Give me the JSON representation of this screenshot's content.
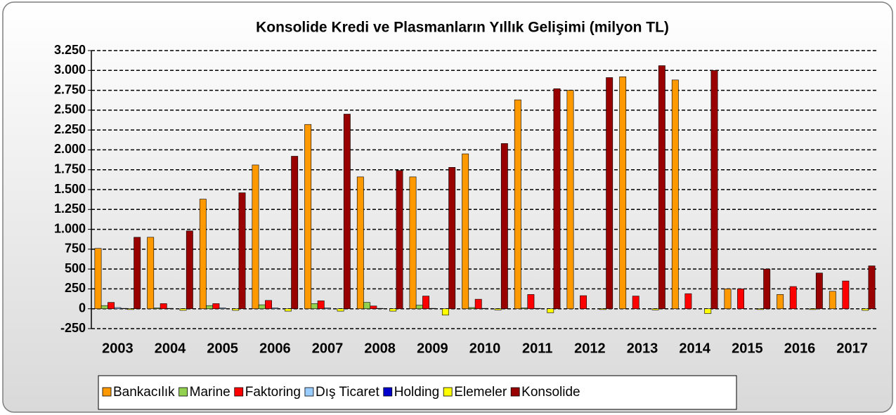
{
  "chart_data": {
    "type": "bar",
    "title": "Konsolide Kredi ve Plasmanların Yıllık Gelişimi (milyon TL)",
    "categories": [
      "2003",
      "2004",
      "2005",
      "2006",
      "2007",
      "2008",
      "2009",
      "2010",
      "2011",
      "2012",
      "2013",
      "2014",
      "2015",
      "2016",
      "2017"
    ],
    "series": [
      {
        "name": "Bankacılık",
        "color": "#ff9900",
        "values": [
          760,
          900,
          1380,
          1810,
          2320,
          1660,
          1660,
          1950,
          2630,
          2750,
          2920,
          2880,
          250,
          180,
          220
        ]
      },
      {
        "name": "Marine",
        "color": "#92d050",
        "values": [
          40,
          10,
          40,
          50,
          65,
          80,
          45,
          15,
          10,
          0,
          0,
          0,
          0,
          0,
          0
        ]
      },
      {
        "name": "Faktoring",
        "color": "#ff0000",
        "values": [
          80,
          65,
          65,
          105,
          100,
          35,
          160,
          120,
          180,
          165,
          160,
          190,
          250,
          280,
          350
        ]
      },
      {
        "name": "Dış Ticaret",
        "color": "#99ccff",
        "values": [
          15,
          5,
          10,
          10,
          10,
          5,
          5,
          5,
          5,
          0,
          0,
          0,
          0,
          0,
          0
        ]
      },
      {
        "name": "Holding",
        "color": "#0000cc",
        "values": [
          5,
          0,
          0,
          0,
          0,
          0,
          0,
          0,
          0,
          0,
          0,
          0,
          0,
          0,
          0
        ]
      },
      {
        "name": "Elemeler",
        "color": "#ffff00",
        "values": [
          -10,
          -20,
          -20,
          -30,
          -30,
          -30,
          -80,
          -15,
          -50,
          -10,
          -15,
          -60,
          -10,
          -10,
          -20
        ]
      },
      {
        "name": "Konsolide",
        "color": "#990000",
        "values": [
          900,
          980,
          1460,
          1920,
          2450,
          1740,
          1780,
          2080,
          2770,
          2910,
          3060,
          3000,
          500,
          450,
          540
        ]
      }
    ],
    "ylim": [
      -250,
      3250
    ],
    "yticks": [
      -250,
      0,
      250,
      500,
      750,
      {
        "value": 1000,
        "label": "1.000"
      },
      {
        "value": 1250,
        "label": "1.250"
      },
      {
        "value": 1500,
        "label": "1.500"
      },
      {
        "value": 1750,
        "label": "1.750"
      },
      {
        "value": 2000,
        "label": "2.000"
      },
      {
        "value": 2250,
        "label": "2.250"
      },
      {
        "value": 2500,
        "label": "2.500"
      },
      {
        "value": 2750,
        "label": "2.750"
      },
      {
        "value": 3000,
        "label": "3.000"
      },
      {
        "value": 3250,
        "label": "3.250"
      }
    ],
    "grid": true,
    "legend": "bottom"
  }
}
